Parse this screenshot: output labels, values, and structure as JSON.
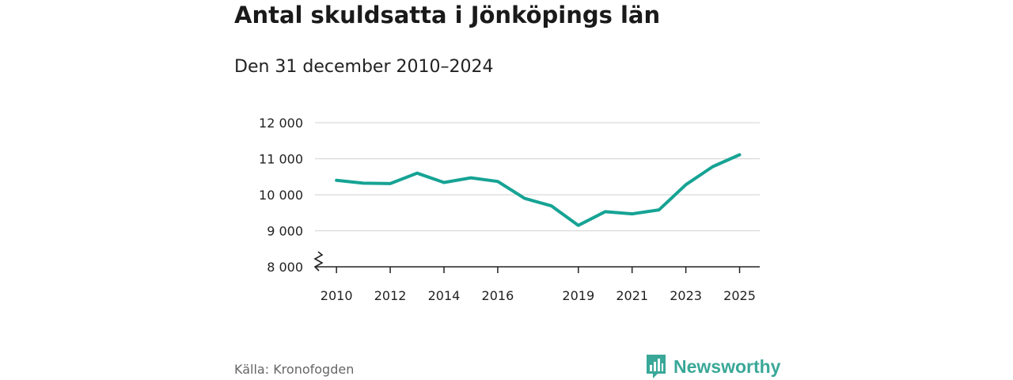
{
  "chart_data": {
    "type": "line",
    "title": "Antal skuldsatta i Jönköpings län",
    "subtitle": "Den 31 december 2010–2024",
    "x": [
      2010,
      2011,
      2012,
      2013,
      2014,
      2015,
      2016,
      2017,
      2018,
      2019,
      2020,
      2021,
      2022,
      2023,
      2024,
      2025
    ],
    "series": [
      {
        "name": "Antal skuldsatta",
        "color": "#16a394",
        "values": [
          10400,
          10320,
          10310,
          10600,
          10340,
          10470,
          10370,
          9900,
          9690,
          9150,
          9530,
          9470,
          9580,
          10280,
          10780,
          11110
        ]
      }
    ],
    "xticks": [
      2010,
      2012,
      2014,
      2016,
      2019,
      2021,
      2023,
      2025
    ],
    "xtick_labels": [
      "2010",
      "2012",
      "2014",
      "2016",
      "2019",
      "2021",
      "2023",
      "2025"
    ],
    "yticks": [
      8000,
      9000,
      10000,
      11000,
      12000
    ],
    "ytick_labels": [
      "8 000",
      "9 000",
      "10 000",
      "11 000",
      "12 000"
    ],
    "ylim": [
      8000,
      12000
    ],
    "grid": true,
    "axis_break": true,
    "xlabel": "",
    "ylabel": ""
  },
  "source": "Källa: Kronofogden",
  "brand": {
    "name": "Newsworthy",
    "color": "#3aa898"
  }
}
